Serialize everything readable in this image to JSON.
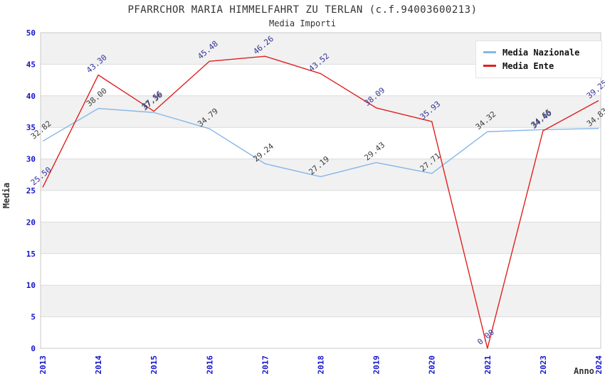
{
  "title": "PFARRCHOR MARIA HIMMELFAHRT ZU TERLAN (c.f.94003600213)",
  "subtitle": "Media Importi",
  "legend": {
    "items": [
      {
        "label": "Media Nazionale",
        "color": "#85b7e8"
      },
      {
        "label": "Media Ente",
        "color": "#e02020"
      }
    ]
  },
  "chart_data": {
    "type": "line",
    "title": "PFARRCHOR MARIA HIMMELFAHRT ZU TERLAN (c.f.94003600213)",
    "subtitle": "Media Importi",
    "x": [
      "2013",
      "2014",
      "2015",
      "2016",
      "2017",
      "2018",
      "2019",
      "2020",
      "2021",
      "2023",
      "2024"
    ],
    "series": [
      {
        "name": "Media Nazionale",
        "color": "#85b7e8",
        "label_color": "#3c3c3c",
        "values": [
          32.82,
          38.0,
          37.36,
          34.79,
          29.24,
          27.19,
          29.43,
          27.71,
          34.32,
          34.65,
          34.83
        ]
      },
      {
        "name": "Media Ente",
        "color": "#e02020",
        "label_color": "#333399",
        "values": [
          25.5,
          43.3,
          37.56,
          45.48,
          46.26,
          43.52,
          38.09,
          35.93,
          0.0,
          34.46,
          39.25
        ]
      }
    ],
    "xlabel": "Anno",
    "ylabel": "Media",
    "ylim": [
      0,
      50
    ],
    "ytick_step": 5,
    "grid": true,
    "legend_position": "top-right",
    "band_colors": [
      "#ffffff",
      "#f1f1f1"
    ],
    "gridline_color": "#dcdcdc",
    "border_color": "#c9c9c9",
    "tick_label_color": "#1414cc"
  }
}
